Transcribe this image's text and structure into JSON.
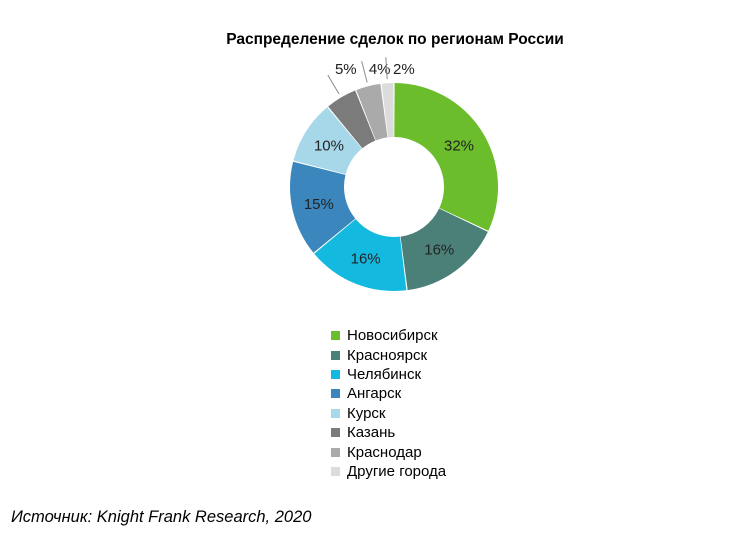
{
  "chart_data": {
    "type": "pie",
    "title": "Распределение сделок по регионам России",
    "categories": [
      "Новосибирск",
      "Красноярск",
      "Челябинск",
      "Ангарск",
      "Курск",
      "Казань",
      "Краснодар",
      "Другие города"
    ],
    "values": [
      32,
      16,
      16,
      15,
      10,
      5,
      4,
      2
    ],
    "data_labels": [
      "32%",
      "16%",
      "16%",
      "15%",
      "10%",
      "5%",
      "4%",
      "2%"
    ],
    "colors": [
      "#6cbd2c",
      "#4a8078",
      "#13b9df",
      "#3b87bd",
      "#a7d8ea",
      "#7b7b7b",
      "#aaaaaa",
      "#dcdcdc"
    ],
    "donut": true,
    "legend_position": "bottom",
    "grid": false
  },
  "source": "Источник: Knight Frank Research, 2020"
}
